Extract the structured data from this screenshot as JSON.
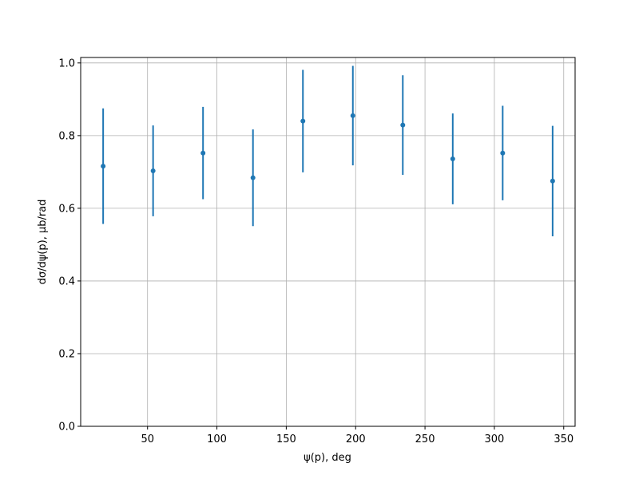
{
  "chart_data": {
    "type": "errorbar",
    "xlabel": "ψ(p), deg",
    "ylabel": "dσ/dψ(p), μb/rad",
    "x": [
      18,
      54,
      90,
      126,
      162,
      198,
      234,
      270,
      306,
      342
    ],
    "values": [
      0.716,
      0.703,
      0.752,
      0.684,
      0.84,
      0.855,
      0.829,
      0.736,
      0.752,
      0.675
    ],
    "errors": [
      0.159,
      0.125,
      0.127,
      0.133,
      0.141,
      0.137,
      0.137,
      0.125,
      0.13,
      0.152
    ],
    "color": "#1f77b4",
    "xlim": [
      1.8,
      358.2
    ],
    "ylim": [
      0,
      1.015
    ],
    "xticks": [
      50,
      100,
      150,
      200,
      250,
      300,
      350
    ],
    "yticks": [
      {
        "value": 0,
        "label": "0.0"
      },
      0.2,
      0.4,
      0.6,
      0.8,
      {
        "value": 1,
        "label": "1.0"
      }
    ],
    "grid": true
  }
}
